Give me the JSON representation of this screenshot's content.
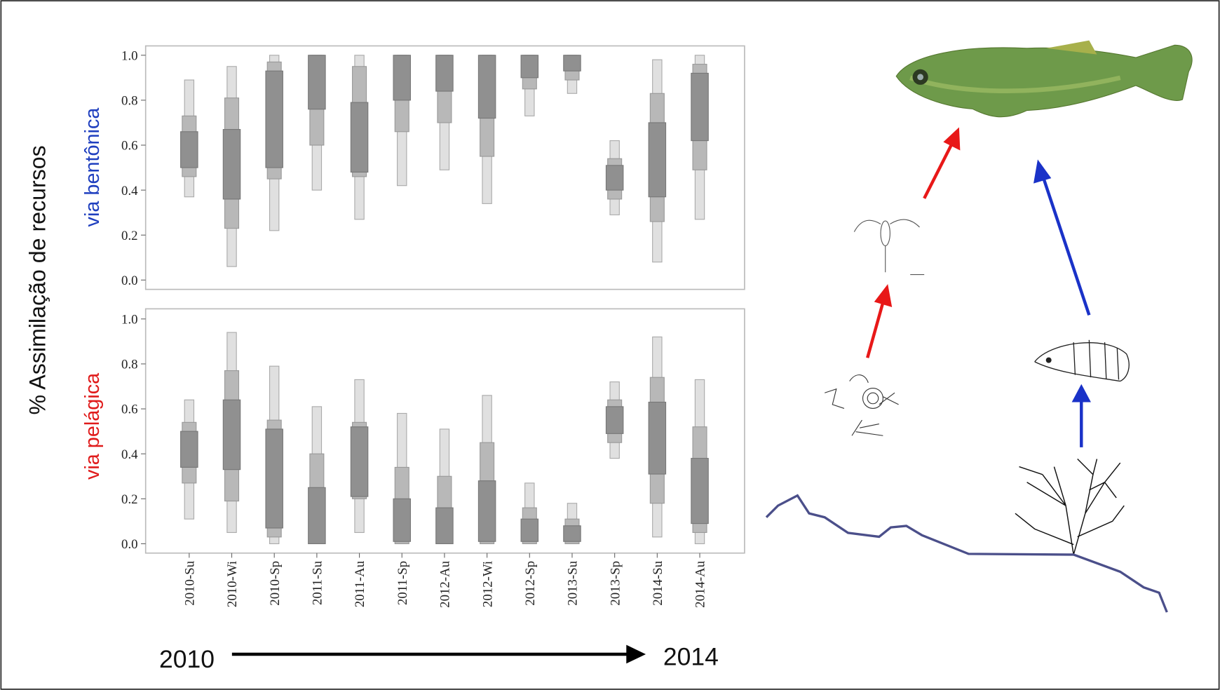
{
  "ylabel": "% Assimilação de recursos",
  "timeline": {
    "start": "2010",
    "end": "2014"
  },
  "chart_data": [
    {
      "type": "interval",
      "ylabel": "via bentônica",
      "ylabel_color": "#1f3fbf",
      "ylim": [
        0,
        1
      ],
      "yticks": [
        {
          "value": 0,
          "label": "0.0"
        },
        {
          "value": 0.2,
          "label": "0.2"
        },
        {
          "value": 0.4,
          "label": "0.4"
        },
        {
          "value": 0.6,
          "label": "0.6"
        },
        {
          "value": 0.8,
          "label": "0.8"
        },
        {
          "value": 1,
          "label": "1.0"
        }
      ],
      "colors": {
        "ci95": "#e0e0e0",
        "ci75": "#b8b8b8",
        "ci50": "#909090"
      },
      "ci95_high": [
        0.89,
        0.95,
        1.0,
        1.0,
        1.0,
        1.0,
        1.0,
        1.0,
        1.0,
        1.0,
        0.62,
        0.98,
        1.0
      ],
      "ci95_low": [
        0.37,
        0.06,
        0.22,
        0.4,
        0.27,
        0.42,
        0.49,
        0.34,
        0.73,
        0.83,
        0.29,
        0.08,
        0.27
      ],
      "ci75_high": [
        0.73,
        0.81,
        0.97,
        1.0,
        0.95,
        1.0,
        1.0,
        1.0,
        1.0,
        1.0,
        0.54,
        0.83,
        0.96
      ],
      "ci75_low": [
        0.46,
        0.23,
        0.45,
        0.6,
        0.46,
        0.66,
        0.7,
        0.55,
        0.85,
        0.89,
        0.36,
        0.26,
        0.49
      ],
      "ci50_high": [
        0.66,
        0.67,
        0.93,
        1.0,
        0.79,
        1.0,
        1.0,
        1.0,
        1.0,
        1.0,
        0.51,
        0.7,
        0.92
      ],
      "ci50_low": [
        0.5,
        0.36,
        0.5,
        0.76,
        0.48,
        0.8,
        0.84,
        0.72,
        0.9,
        0.93,
        0.4,
        0.37,
        0.62
      ]
    },
    {
      "type": "interval",
      "ylabel": "via pelágica",
      "ylabel_color": "#e01b1b",
      "ylim": [
        0,
        1
      ],
      "yticks": [
        {
          "value": 0,
          "label": "0.0"
        },
        {
          "value": 0.2,
          "label": "0.2"
        },
        {
          "value": 0.4,
          "label": "0.4"
        },
        {
          "value": 0.6,
          "label": "0.6"
        },
        {
          "value": 0.8,
          "label": "0.8"
        },
        {
          "value": 1,
          "label": "1.0"
        }
      ],
      "colors": {
        "ci95": "#e0e0e0",
        "ci75": "#b8b8b8",
        "ci50": "#909090"
      },
      "categories": [
        "2010-Su",
        "2010-Wi",
        "2010-Sp",
        "2011-Su",
        "2011-Au",
        "2011-Sp",
        "2012-Au",
        "2012-Wi",
        "2012-Sp",
        "2013-Su",
        "2013-Sp",
        "2014-Su",
        "2014-Au"
      ],
      "ci95_high": [
        0.64,
        0.94,
        0.79,
        0.61,
        0.73,
        0.58,
        0.51,
        0.66,
        0.27,
        0.18,
        0.72,
        0.92,
        0.73
      ],
      "ci95_low": [
        0.11,
        0.05,
        0.0,
        0.0,
        0.05,
        0.0,
        0.0,
        0.0,
        0.0,
        0.0,
        0.38,
        0.03,
        0.0
      ],
      "ci75_high": [
        0.54,
        0.77,
        0.55,
        0.4,
        0.54,
        0.34,
        0.3,
        0.45,
        0.16,
        0.11,
        0.64,
        0.74,
        0.52
      ],
      "ci75_low": [
        0.27,
        0.19,
        0.03,
        0.0,
        0.2,
        0.0,
        0.0,
        0.0,
        0.0,
        0.0,
        0.45,
        0.18,
        0.05
      ],
      "ci50_high": [
        0.5,
        0.64,
        0.51,
        0.25,
        0.52,
        0.2,
        0.16,
        0.28,
        0.11,
        0.08,
        0.61,
        0.63,
        0.38
      ],
      "ci50_low": [
        0.34,
        0.33,
        0.07,
        0.0,
        0.21,
        0.01,
        0.0,
        0.01,
        0.01,
        0.01,
        0.49,
        0.31,
        0.09
      ]
    }
  ]
}
